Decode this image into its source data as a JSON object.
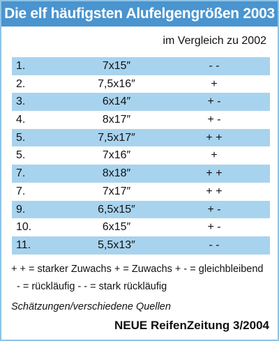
{
  "header": {
    "title": "Die elf häufigsten Alufelgengrößen 2003",
    "subtitle": "im Vergleich zu 2002"
  },
  "table": {
    "rows": [
      [
        "1.",
        "7x15″",
        "- -"
      ],
      [
        "2.",
        "7,5x16″",
        "+"
      ],
      [
        "3.",
        "6x14″",
        "+ -"
      ],
      [
        "4.",
        "8x17″",
        "+ -"
      ],
      [
        "5.",
        "7,5x17″",
        "+ +"
      ],
      [
        "5.",
        "7x16″",
        "+"
      ],
      [
        "7.",
        "8x18″",
        "+ +"
      ],
      [
        "7.",
        "7x17″",
        "+ +"
      ],
      [
        "9.",
        "6,5x15″",
        "+ -"
      ],
      [
        "10.",
        "6x15″",
        "+ -"
      ],
      [
        "11.",
        "5,5x13″",
        "- -"
      ]
    ]
  },
  "legend": {
    "lines": [
      "+ + = starker Zuwachs + = Zuwachs + - = gleichbleibend",
      "- = rückläufig - - = stark rückläufig"
    ]
  },
  "footer": {
    "note": "Schätzungen/verschiedene Quellen",
    "source": "NEUE ReifenZeitung 3/2004"
  }
}
